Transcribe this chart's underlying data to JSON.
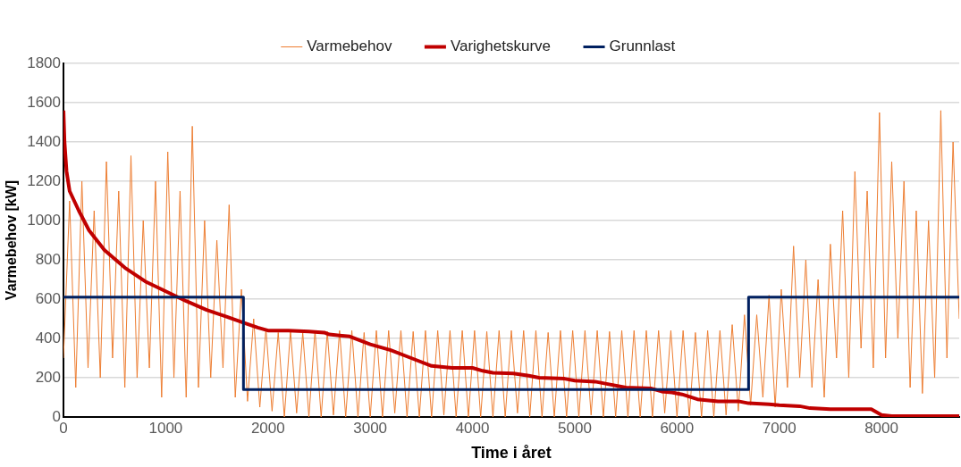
{
  "chart_data": {
    "type": "line",
    "xlabel": "Time i året",
    "ylabel": "Varmebehov [kW]",
    "xlim": [
      0,
      8760
    ],
    "xticks": [
      0,
      1000,
      2000,
      3000,
      4000,
      5000,
      6000,
      7000,
      8000
    ],
    "ylim": [
      0,
      1800
    ],
    "yticks": [
      0,
      200,
      400,
      600,
      800,
      1000,
      1200,
      1400,
      1600,
      1800
    ],
    "grid": "y",
    "legend": "top",
    "marker": "none",
    "line_style": "solid",
    "series": [
      {
        "name": "Varmebehov",
        "color": "#ed7d31",
        "x": [
          0,
          60,
          120,
          180,
          240,
          300,
          360,
          420,
          480,
          540,
          600,
          660,
          720,
          780,
          840,
          900,
          960,
          1020,
          1080,
          1140,
          1200,
          1260,
          1320,
          1380,
          1440,
          1500,
          1560,
          1620,
          1680,
          1740,
          1800,
          1860,
          1920,
          1980,
          2040,
          2100,
          2160,
          2220,
          2280,
          2340,
          2400,
          2460,
          2520,
          2580,
          2640,
          2700,
          2760,
          2820,
          2880,
          2940,
          3000,
          3060,
          3120,
          3180,
          3240,
          3300,
          3360,
          3420,
          3480,
          3540,
          3600,
          3660,
          3720,
          3780,
          3840,
          3900,
          3960,
          4020,
          4080,
          4140,
          4200,
          4260,
          4320,
          4380,
          4440,
          4500,
          4560,
          4620,
          4680,
          4740,
          4800,
          4860,
          4920,
          4980,
          5040,
          5100,
          5160,
          5220,
          5280,
          5340,
          5400,
          5460,
          5520,
          5580,
          5640,
          5700,
          5760,
          5820,
          5880,
          5940,
          6000,
          6060,
          6120,
          6180,
          6240,
          6300,
          6360,
          6420,
          6480,
          6540,
          6600,
          6660,
          6720,
          6780,
          6840,
          6900,
          6960,
          7020,
          7080,
          7140,
          7200,
          7260,
          7320,
          7380,
          7440,
          7500,
          7560,
          7620,
          7680,
          7740,
          7800,
          7860,
          7920,
          7980,
          8040,
          8100,
          8160,
          8220,
          8280,
          8340,
          8400,
          8460,
          8520,
          8580,
          8640,
          8700,
          8760
        ],
        "values": [
          300,
          1100,
          150,
          1200,
          250,
          1050,
          200,
          1300,
          300,
          1150,
          150,
          1330,
          200,
          1000,
          250,
          1200,
          100,
          1350,
          200,
          1150,
          100,
          1480,
          150,
          1000,
          200,
          900,
          250,
          1080,
          100,
          650,
          80,
          500,
          50,
          450,
          30,
          430,
          0,
          440,
          20,
          430,
          0,
          440,
          0,
          435,
          10,
          440,
          0,
          440,
          0,
          430,
          0,
          440,
          0,
          440,
          20,
          440,
          0,
          435,
          0,
          440,
          0,
          440,
          10,
          440,
          0,
          440,
          0,
          440,
          0,
          435,
          0,
          440,
          0,
          440,
          20,
          440,
          0,
          440,
          0,
          430,
          0,
          440,
          0,
          440,
          0,
          440,
          10,
          440,
          0,
          435,
          0,
          440,
          0,
          440,
          0,
          440,
          0,
          440,
          20,
          440,
          0,
          440,
          0,
          430,
          0,
          440,
          0,
          440,
          10,
          470,
          30,
          520,
          60,
          520,
          100,
          620,
          50,
          650,
          150,
          870,
          200,
          800,
          150,
          700,
          100,
          880,
          300,
          1050,
          200,
          1250,
          350,
          1150,
          250,
          1550,
          300,
          1300,
          400,
          1200,
          150,
          1050,
          120,
          1000,
          200,
          1560,
          300,
          1400,
          500
        ]
      },
      {
        "name": "Varighetskurve",
        "color": "#c00000",
        "x": [
          0,
          10,
          30,
          60,
          150,
          250,
          400,
          600,
          800,
          1000,
          1200,
          1400,
          1600,
          1760,
          1900,
          2000,
          2200,
          2400,
          2550,
          2600,
          2700,
          2800,
          3000,
          3200,
          3400,
          3600,
          3800,
          4000,
          4100,
          4200,
          4400,
          4550,
          4650,
          4900,
          5000,
          5200,
          5300,
          5500,
          5750,
          5850,
          5950,
          6050,
          6200,
          6400,
          6600,
          6700,
          6900,
          7000,
          7200,
          7300,
          7500,
          7900,
          8000,
          8100,
          8760
        ],
        "values": [
          1560,
          1400,
          1250,
          1150,
          1050,
          950,
          850,
          760,
          690,
          640,
          590,
          545,
          510,
          480,
          455,
          440,
          440,
          435,
          430,
          420,
          415,
          410,
          370,
          340,
          300,
          260,
          250,
          250,
          235,
          225,
          222,
          210,
          200,
          195,
          185,
          180,
          170,
          150,
          145,
          130,
          125,
          115,
          90,
          80,
          80,
          70,
          65,
          60,
          55,
          45,
          40,
          40,
          10,
          5,
          5
        ]
      },
      {
        "name": "Grunnlast",
        "color": "#002060",
        "x": [
          0,
          1760,
          1760,
          6700,
          6700,
          8760
        ],
        "values": [
          610,
          610,
          140,
          140,
          610,
          610
        ]
      }
    ]
  }
}
